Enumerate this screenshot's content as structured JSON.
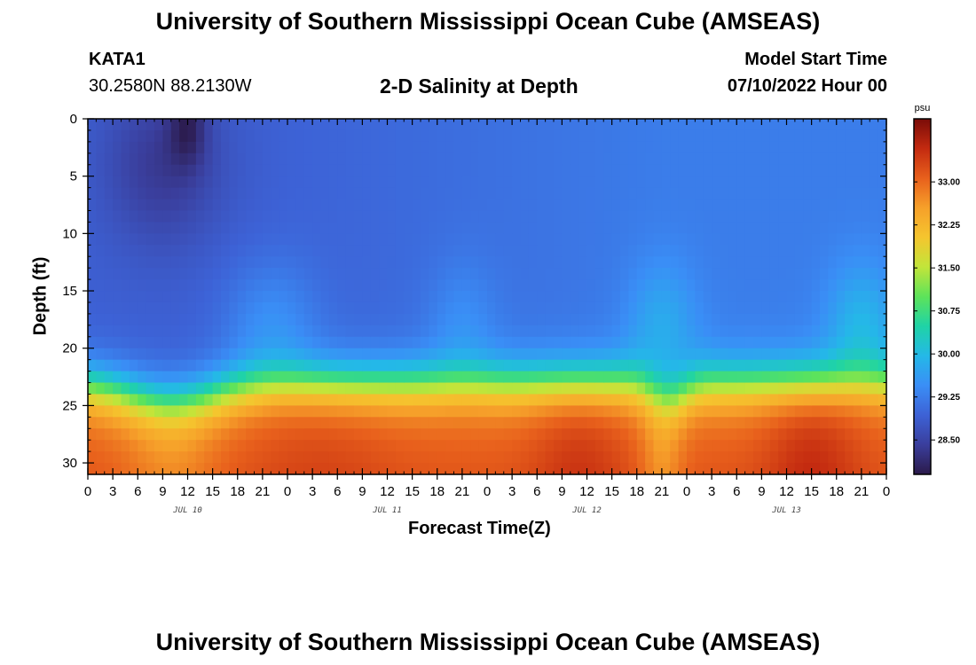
{
  "header": {
    "title": "University of Southern Mississippi Ocean Cube (AMSEAS)",
    "station": "KATA1",
    "coords": "30.2580N  88.2130W",
    "subtitle": "2-D Salinity at Depth",
    "model_start_label": "Model Start Time",
    "model_start_value": "07/10/2022 Hour 00"
  },
  "footer": {
    "title": "University of Southern Mississippi Ocean Cube (AMSEAS)"
  },
  "colors": {
    "scale": [
      "#2b1a4a",
      "#3a3e9c",
      "#3d62d6",
      "#3a8ef6",
      "#24b8e8",
      "#1fd3a6",
      "#5de35a",
      "#c2e53a",
      "#f5c52e",
      "#f6a02a",
      "#e8601c",
      "#c32a10",
      "#7a0c08"
    ]
  },
  "chart_data": {
    "type": "heatmap",
    "title": "2-D Salinity at Depth",
    "xlabel": "Forecast Time(Z)",
    "ylabel": "Depth (ft)",
    "x_range_hours": [
      0,
      96
    ],
    "ylim": [
      0,
      31
    ],
    "x_tick_labels": [
      "0",
      "3",
      "6",
      "9",
      "12",
      "15",
      "18",
      "21",
      "0",
      "3",
      "6",
      "9",
      "12",
      "15",
      "18",
      "21",
      "0",
      "3",
      "6",
      "9",
      "12",
      "15",
      "18",
      "21",
      "0",
      "3",
      "6",
      "9",
      "12",
      "15",
      "18",
      "21",
      "0"
    ],
    "y_ticks": [
      0,
      5,
      10,
      15,
      20,
      25,
      30
    ],
    "date_labels": [
      {
        "label": "JUL 10",
        "hour": 12
      },
      {
        "label": "JUL 11",
        "hour": 36
      },
      {
        "label": "JUL 12",
        "hour": 60
      },
      {
        "label": "JUL 13",
        "hour": 84
      }
    ],
    "colorbar": {
      "unit": "psu",
      "range": [
        27.9,
        34.1
      ],
      "ticks": [
        "33.00",
        "32.25",
        "31.50",
        "30.75",
        "30.00",
        "29.25",
        "28.50"
      ]
    },
    "surface_salinity_psu": 28.9,
    "deep_salinity_psu": 33.0,
    "halocline_depth_ft": 23
  }
}
